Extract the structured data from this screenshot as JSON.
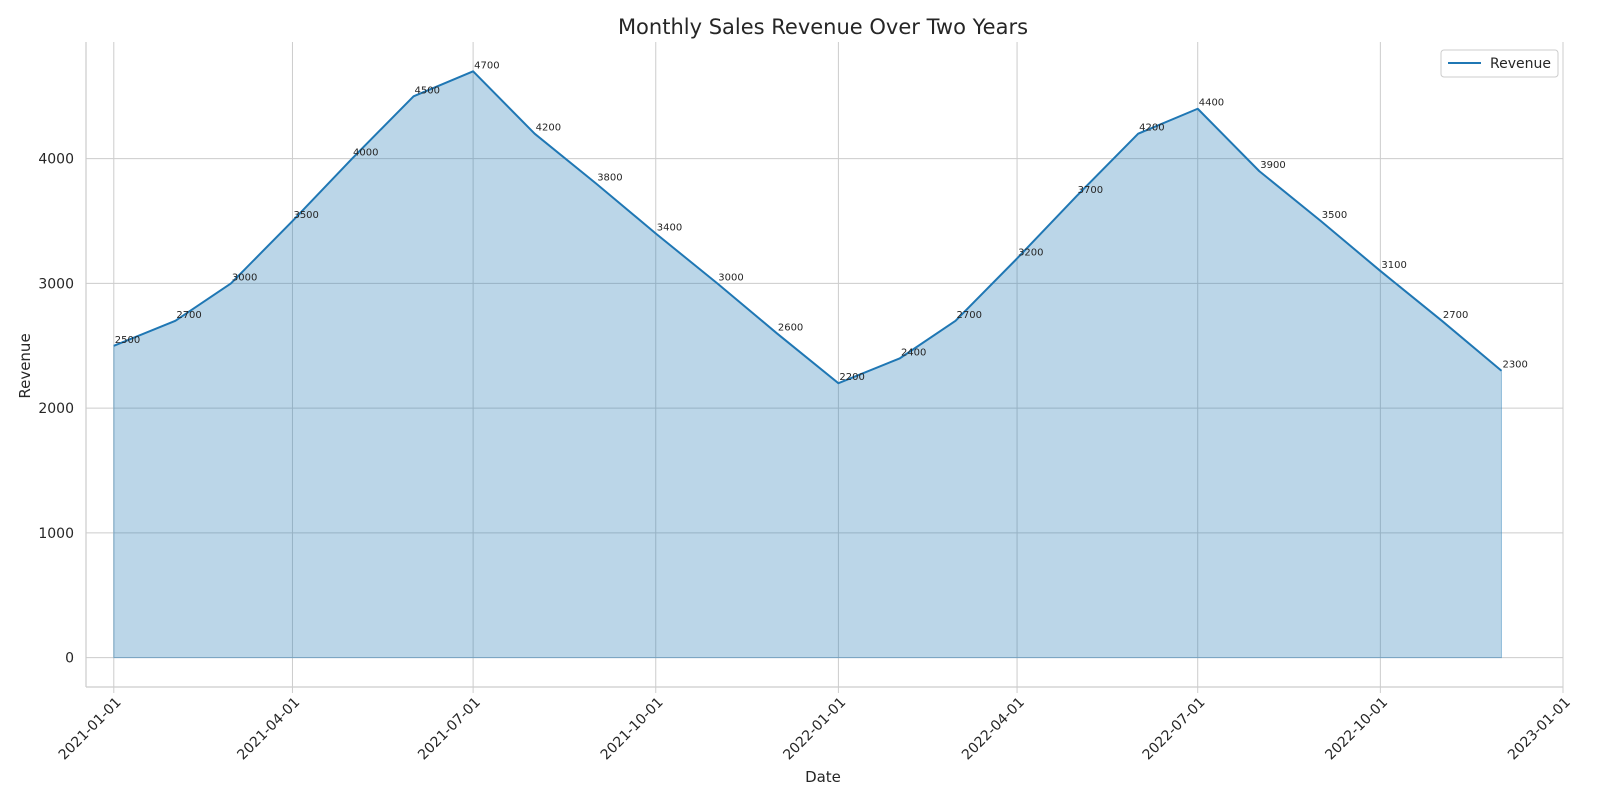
{
  "chart_data": {
    "type": "area",
    "title": "Monthly Sales Revenue Over Two Years",
    "xlabel": "Date",
    "ylabel": "Revenue",
    "x": [
      "2021-01-01",
      "2021-02-01",
      "2021-03-01",
      "2021-04-01",
      "2021-05-01",
      "2021-06-01",
      "2021-07-01",
      "2021-08-01",
      "2021-09-01",
      "2021-10-01",
      "2021-11-01",
      "2021-12-01",
      "2022-01-01",
      "2022-02-01",
      "2022-03-01",
      "2022-04-01",
      "2022-05-01",
      "2022-06-01",
      "2022-07-01",
      "2022-08-01",
      "2022-09-01",
      "2022-10-01",
      "2022-11-01",
      "2022-12-01"
    ],
    "series": [
      {
        "name": "Revenue",
        "values": [
          2500,
          2700,
          3000,
          3500,
          4000,
          4500,
          4700,
          4200,
          3800,
          3400,
          3000,
          2600,
          2200,
          2400,
          2700,
          3200,
          3700,
          4200,
          4400,
          3900,
          3500,
          3100,
          2700,
          2300
        ]
      }
    ],
    "x_ticks": [
      "2021-01-01",
      "2021-04-01",
      "2021-07-01",
      "2021-10-01",
      "2022-01-01",
      "2022-04-01",
      "2022-07-01",
      "2022-10-01",
      "2023-01-01"
    ],
    "y_ticks": [
      0,
      1000,
      2000,
      3000,
      4000
    ],
    "xlim": [
      "2020-12-18",
      "2023-01-01"
    ],
    "ylim": [
      -235,
      4935
    ],
    "grid": true,
    "legend": "top-right",
    "line_color": "#1f77b4",
    "fill_color": "#1f77b4"
  }
}
